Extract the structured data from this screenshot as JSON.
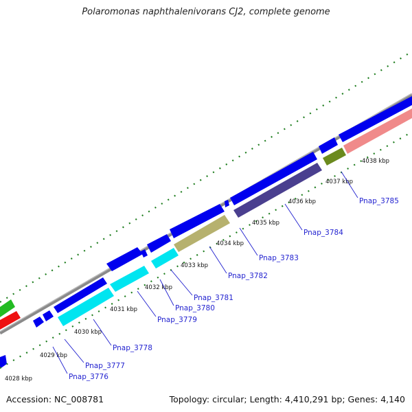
{
  "title": "Polaromonas naphthalenivorans CJ2, complete genome",
  "footer": {
    "accession": "Accession: NC_008781",
    "summary": "Topology: circular; Length: 4,410,291 bp; Genes: 4,140"
  },
  "ticks": [
    "4028 kbp",
    "4029 kbp",
    "4030 kbp",
    "4031 kbp",
    "4032 kbp",
    "4033 kbp",
    "4034 kbp",
    "4035 kbp",
    "4036 kbp",
    "4037 kbp",
    "4038 kbp"
  ],
  "gene_labels": [
    "Pnap_3776",
    "Pnap_3777",
    "Pnap_3778",
    "Pnap_3779",
    "Pnap_3780",
    "Pnap_3781",
    "Pnap_3782",
    "Pnap_3783",
    "Pnap_3784",
    "Pnap_3785"
  ],
  "colors": {
    "backbone": "#8a8a8a",
    "forward": "#0000ee",
    "cyan": "#00e5f0",
    "khaki": "#b6b16e",
    "purple": "#4a3f8f",
    "olive": "#6b8a1e",
    "pink": "#f08a8a",
    "green": "#22bb22",
    "red": "#ee1111",
    "dots": "#1e7d1e",
    "label": "#1f1fcf"
  }
}
